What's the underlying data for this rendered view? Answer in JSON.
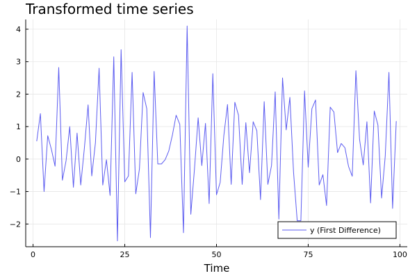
{
  "chart_data": {
    "type": "line",
    "title": "Transformed time series",
    "xlabel": "Time",
    "ylabel": "",
    "xlim": [
      -2,
      102
    ],
    "ylim": [
      -2.7,
      4.3
    ],
    "xticks": [
      0,
      25,
      50,
      75,
      100
    ],
    "yticks": [
      -2,
      -1,
      0,
      1,
      2,
      3,
      4
    ],
    "ytick_labels": [
      "−2",
      "−1",
      "0",
      "1",
      "2",
      "3",
      "4"
    ],
    "grid": true,
    "legend_position": "bottom-right",
    "colors": {
      "series": "#5b5bf0"
    },
    "x": [
      1,
      2,
      3,
      4,
      5,
      6,
      7,
      8,
      9,
      10,
      11,
      12,
      13,
      14,
      15,
      16,
      17,
      18,
      19,
      20,
      21,
      22,
      23,
      24,
      25,
      26,
      27,
      28,
      29,
      30,
      31,
      32,
      33,
      34,
      35,
      36,
      37,
      38,
      39,
      40,
      41,
      42,
      43,
      44,
      45,
      46,
      47,
      48,
      49,
      50,
      51,
      52,
      53,
      54,
      55,
      56,
      57,
      58,
      59,
      60,
      61,
      62,
      63,
      64,
      65,
      66,
      67,
      68,
      69,
      70,
      71,
      72,
      73,
      74,
      75,
      76,
      77,
      78,
      79,
      80,
      81,
      82,
      83,
      84,
      85,
      86,
      87,
      88,
      89,
      90,
      91,
      92,
      93,
      94,
      95,
      96,
      97,
      98,
      99
    ],
    "series": [
      {
        "name": "y (First Difference)",
        "values": [
          0.55,
          1.4,
          -1.0,
          0.72,
          0.3,
          -0.22,
          2.82,
          -0.65,
          -0.05,
          1.0,
          -0.87,
          0.8,
          -0.8,
          0.35,
          1.67,
          -0.52,
          0.5,
          2.8,
          -0.8,
          -0.02,
          -1.12,
          3.15,
          -2.52,
          3.37,
          -0.7,
          -0.52,
          2.67,
          -1.07,
          -0.3,
          2.05,
          1.55,
          -2.42,
          2.7,
          -0.15,
          -0.15,
          -0.02,
          0.25,
          0.75,
          1.35,
          1.07,
          -2.27,
          4.1,
          -1.7,
          -0.3,
          1.27,
          -0.2,
          1.1,
          -1.37,
          2.63,
          -1.1,
          -0.72,
          0.72,
          1.68,
          -0.78,
          1.75,
          1.35,
          -0.78,
          1.12,
          -0.42,
          1.15,
          0.87,
          -1.25,
          1.77,
          -0.78,
          -0.2,
          2.07,
          -1.85,
          2.5,
          0.9,
          1.9,
          -0.4,
          -1.9,
          -1.9,
          2.1,
          -0.25,
          1.55,
          1.82,
          -0.8,
          -0.48,
          -1.43,
          1.6,
          1.45,
          0.2,
          0.48,
          0.35,
          -0.23,
          -0.53,
          2.72,
          0.6,
          -0.18,
          1.15,
          -1.35,
          1.48,
          1.05,
          -1.2,
          0.1,
          2.67,
          -1.52,
          1.17
        ]
      }
    ]
  }
}
